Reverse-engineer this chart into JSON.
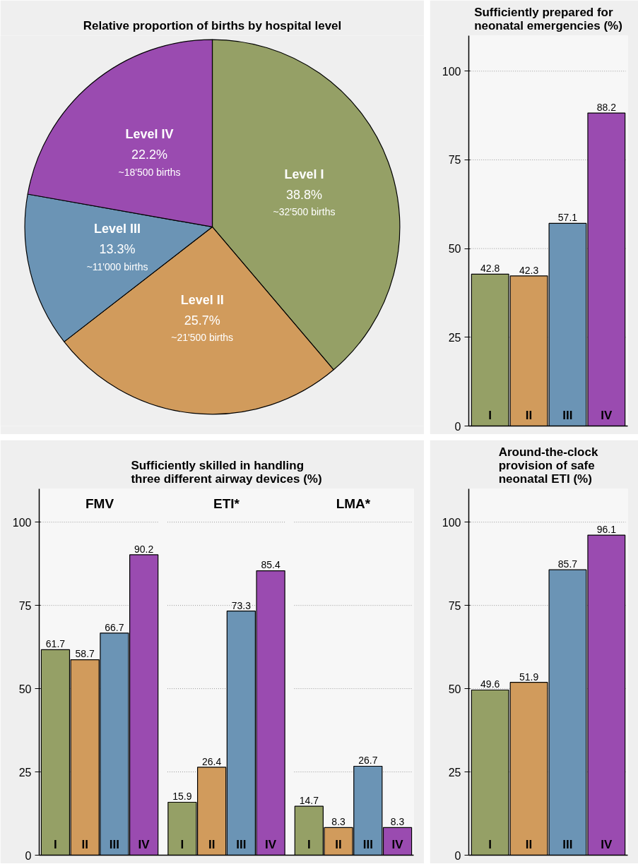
{
  "chart_data": [
    {
      "type": "pie",
      "title": "Relative proportion of births by hospital level",
      "categories": [
        "Level I",
        "Level II",
        "Level III",
        "Level IV"
      ],
      "values": [
        38.8,
        25.7,
        13.3,
        22.2
      ],
      "colors": [
        "#95a066",
        "#d19b5c",
        "#6b94b5",
        "#9a4bb0"
      ],
      "value_labels": [
        "38.8%",
        "25.7%",
        "13.3%",
        "22.2%"
      ],
      "annotations": [
        "~32'500 births",
        "~21'500 births",
        "~11'000 births",
        "~18'500 births"
      ]
    },
    {
      "type": "bar",
      "title": "Sufficiently prepared for\nneonatal emergencies (%)",
      "categories": [
        "I",
        "II",
        "III",
        "IV"
      ],
      "values": [
        42.8,
        42.3,
        57.1,
        88.2
      ],
      "colors": [
        "#95a066",
        "#d19b5c",
        "#6b94b5",
        "#9a4bb0"
      ],
      "ylim": [
        0,
        110
      ],
      "yticks": [
        0,
        25,
        50,
        75,
        100
      ],
      "grid": "y",
      "data_labels": true
    },
    {
      "type": "bar",
      "title": "Sufficiently skilled in handling\nthree different airway devices (%)",
      "subtitle": "FMV",
      "categories": [
        "I",
        "II",
        "III",
        "IV"
      ],
      "values": [
        61.7,
        58.7,
        66.7,
        90.2
      ],
      "colors": [
        "#95a066",
        "#d19b5c",
        "#6b94b5",
        "#9a4bb0"
      ],
      "ylim": [
        0,
        110
      ],
      "yticks": [
        0,
        25,
        50,
        75,
        100
      ],
      "grid": "y",
      "data_labels": true
    },
    {
      "type": "bar",
      "subtitle": "ETI*",
      "categories": [
        "I",
        "II",
        "III",
        "IV"
      ],
      "values": [
        15.9,
        26.4,
        73.3,
        85.4
      ],
      "colors": [
        "#95a066",
        "#d19b5c",
        "#6b94b5",
        "#9a4bb0"
      ],
      "ylim": [
        0,
        110
      ],
      "yticks": [
        0,
        25,
        50,
        75,
        100
      ],
      "grid": "y",
      "data_labels": true,
      "tick_labels": "x"
    },
    {
      "type": "bar",
      "subtitle": "LMA*",
      "categories": [
        "I",
        "II",
        "III",
        "IV"
      ],
      "values": [
        14.7,
        8.3,
        26.7,
        8.3
      ],
      "colors": [
        "#95a066",
        "#d19b5c",
        "#6b94b5",
        "#9a4bb0"
      ],
      "ylim": [
        0,
        110
      ],
      "yticks": [
        0,
        25,
        50,
        75,
        100
      ],
      "grid": "y",
      "data_labels": true,
      "tick_labels": "x"
    },
    {
      "type": "bar",
      "title": "Around-the-clock\nprovision of safe\nneonatal ETI (%)",
      "categories": [
        "I",
        "II",
        "III",
        "IV"
      ],
      "values": [
        49.6,
        51.9,
        85.7,
        96.1
      ],
      "colors": [
        "#95a066",
        "#d19b5c",
        "#6b94b5",
        "#9a4bb0"
      ],
      "ylim": [
        0,
        110
      ],
      "yticks": [
        0,
        25,
        50,
        75,
        100
      ],
      "grid": "y",
      "data_labels": true
    }
  ]
}
